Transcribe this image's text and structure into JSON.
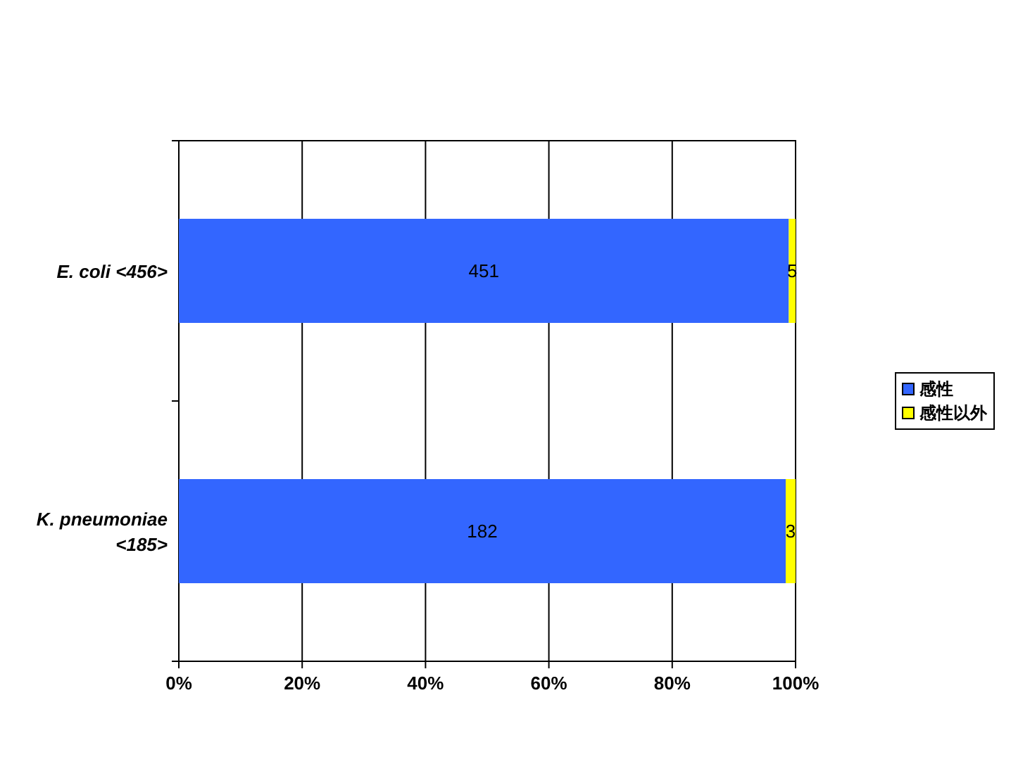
{
  "chart_data": {
    "type": "bar",
    "orientation": "horizontal",
    "stacked": true,
    "categories": [
      "E. coli <456>",
      "K. pneumoniae <185>"
    ],
    "series": [
      {
        "name": "感性",
        "color": "#3366ff",
        "values": [
          98.9,
          98.4
        ]
      },
      {
        "name": "感性以外",
        "color": "#ffff00",
        "values": [
          1.1,
          1.6
        ]
      }
    ],
    "annotations": [
      "451",
      "5",
      "182",
      "3"
    ],
    "xlim": [
      0,
      100
    ],
    "xticks": [
      {
        "value": 0,
        "label": "0%"
      },
      {
        "value": 20,
        "label": "20%"
      },
      {
        "value": 40,
        "label": "40%"
      },
      {
        "value": 60,
        "label": "60%"
      },
      {
        "value": 80,
        "label": "80%"
      },
      {
        "value": 100,
        "label": "100%"
      }
    ],
    "grid": "x",
    "legend": "right"
  }
}
